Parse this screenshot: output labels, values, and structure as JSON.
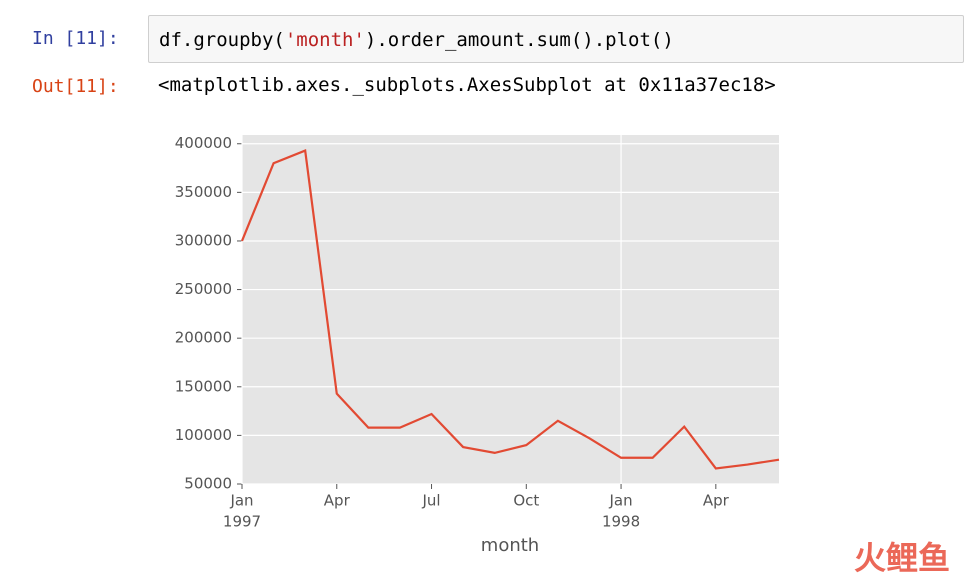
{
  "cells": {
    "input_prompt": "In [11]:",
    "code": [
      "df.groupby(",
      "'month'",
      ").order_amount.sum().plot()"
    ],
    "output_prompt": "Out[11]:",
    "output_text": "<matplotlib.axes._subplots.AxesSubplot at 0x11a37ec18>"
  },
  "chart_data": {
    "type": "line",
    "xlabel": "month",
    "x": [
      "1997-01",
      "1997-02",
      "1997-03",
      "1997-04",
      "1997-05",
      "1997-06",
      "1997-07",
      "1997-08",
      "1997-09",
      "1997-10",
      "1997-11",
      "1997-12",
      "1998-01",
      "1998-02",
      "1998-03",
      "1998-04",
      "1998-05",
      "1998-06"
    ],
    "series": [
      {
        "color": "#e24a33",
        "values": [
          300000,
          380000,
          393000,
          143000,
          108000,
          108000,
          122000,
          88000,
          82000,
          90000,
          115000,
          97000,
          77000,
          77000,
          109000,
          66000,
          70000,
          75000
        ]
      }
    ],
    "xlim": [
      "1997-01",
      "1998-06"
    ],
    "xticks": [
      {
        "value": "1997-01",
        "label": "Jan",
        "year": "1997"
      },
      {
        "value": "1997-04",
        "label": "Apr"
      },
      {
        "value": "1997-07",
        "label": "Jul"
      },
      {
        "value": "1997-10",
        "label": "Oct"
      },
      {
        "value": "1998-01",
        "label": "Jan",
        "year": "1998"
      },
      {
        "value": "1998-04",
        "label": "Apr"
      }
    ],
    "ylim": [
      50000,
      409000
    ],
    "yticks": [
      50000,
      100000,
      150000,
      200000,
      250000,
      300000,
      350000,
      400000
    ],
    "grid": true
  },
  "watermark": "火鲤鱼"
}
